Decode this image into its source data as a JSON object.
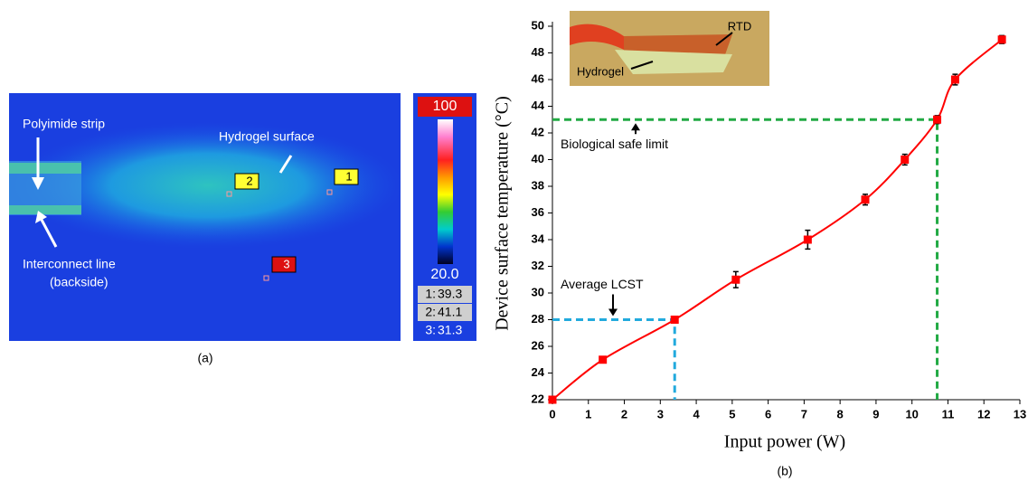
{
  "thermal_image": {
    "labels": [
      "Polyimide strip",
      "Hydrogel surface",
      "Interconnect line",
      "(backside)"
    ],
    "spots": [
      "1",
      "2",
      "3"
    ],
    "colorbar_max": "100",
    "colorbar_min": "20.0",
    "readings": [
      {
        "label": "1:",
        "value": "39.3"
      },
      {
        "label": "2:",
        "value": "41.1"
      },
      {
        "label": "3:",
        "value": "31.3"
      }
    ],
    "caption": "(a)"
  },
  "chart_data": {
    "type": "line",
    "x_label": "Input power (W)",
    "y_label": "Device surface temperature (°C)",
    "caption": "(b)",
    "x": [
      0,
      1.4,
      3.4,
      5.1,
      7.1,
      8.7,
      9.8,
      10.7,
      11.2,
      12.5
    ],
    "series": [
      {
        "color": "#ff0000",
        "values": [
          22,
          25,
          28,
          31,
          34,
          37,
          40,
          43,
          46,
          49
        ],
        "errors": [
          0.2,
          0.2,
          0.2,
          0.6,
          0.7,
          0.4,
          0.4,
          0.3,
          0.4,
          0.3
        ]
      }
    ],
    "xlim": [
      0,
      13
    ],
    "xticks": [
      0,
      1,
      2,
      3,
      4,
      5,
      6,
      7,
      8,
      9,
      10,
      11,
      12,
      13
    ],
    "ylim": [
      22,
      50
    ],
    "yticks": [
      22,
      24,
      26,
      28,
      30,
      32,
      34,
      36,
      38,
      40,
      42,
      44,
      46,
      48,
      50
    ],
    "reference_lines": [
      {
        "label": "Average LCST",
        "x": 3.4,
        "y": 28,
        "color": "#22aadd"
      },
      {
        "label": "Biological safe limit",
        "x": 10.7,
        "y": 43,
        "color": "#22aa44"
      }
    ],
    "inset_labels": [
      "RTD",
      "Hydrogel"
    ]
  }
}
